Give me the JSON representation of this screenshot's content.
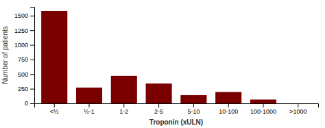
{
  "chart_data": {
    "type": "bar",
    "categories": [
      "<½",
      "½-1",
      "1-2",
      "2-5",
      "5-10",
      "10-100",
      "100-1000",
      ">1000"
    ],
    "values": [
      1580,
      270,
      470,
      340,
      140,
      195,
      65,
      0
    ],
    "color": "#7a0000",
    "xlabel": "Troponin (xULN)",
    "ylabel": "Number of patients",
    "ylim": [
      0,
      1650
    ],
    "yticks": [
      0,
      250,
      500,
      750,
      1000,
      1250,
      1500
    ],
    "grid": false
  }
}
